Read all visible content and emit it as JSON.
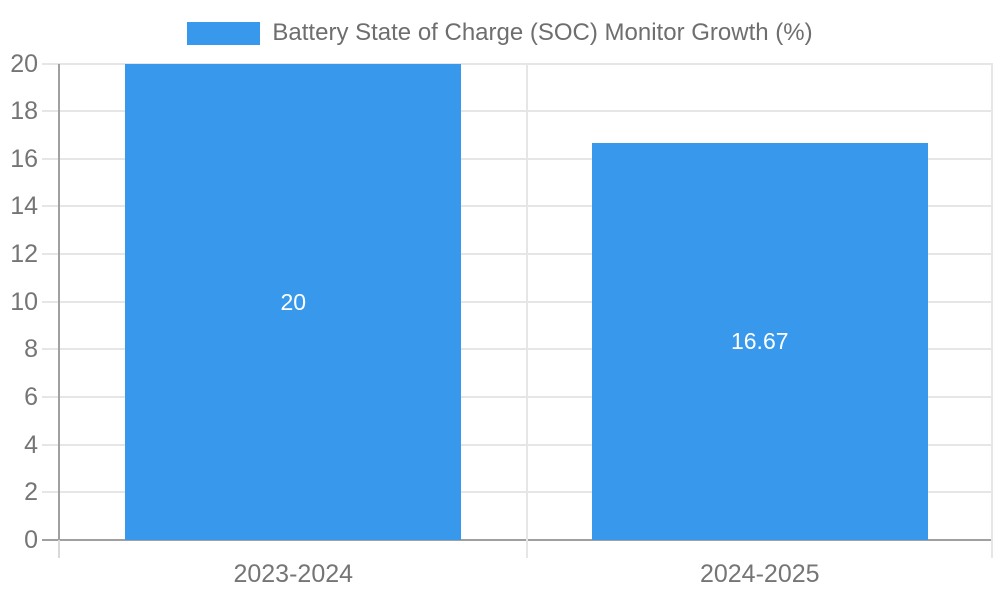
{
  "chart_data": {
    "type": "bar",
    "title": "Battery State of Charge (SOC) Monitor Growth (%)",
    "legend": {
      "position": "top",
      "label": "Battery State of Charge (SOC) Monitor Growth (%)"
    },
    "categories": [
      "2023-2024",
      "2024-2025"
    ],
    "values": [
      20,
      16.67
    ],
    "bar_labels": [
      "20",
      "16.67"
    ],
    "xlabel": "",
    "ylabel": "",
    "ylim": [
      0,
      20
    ],
    "ytick_step": 2,
    "ytick_labels": [
      "0",
      "2",
      "4",
      "6",
      "8",
      "10",
      "12",
      "14",
      "16",
      "18",
      "20"
    ],
    "grid": true,
    "colors": {
      "bar": "#3899ec",
      "grid": "#e6e6e6",
      "axis": "#a0a0a0",
      "tick_line": "#d9d9d9",
      "tick_text": "#757575",
      "legend_text": "#6e6e6e",
      "value_label": "#ffffff",
      "background": "#ffffff"
    }
  }
}
